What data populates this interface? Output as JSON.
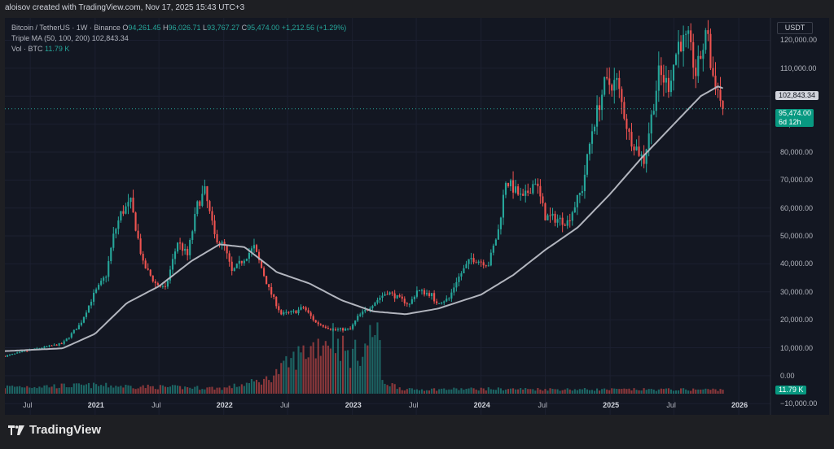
{
  "header": {
    "created_by": "aloisov created with TradingView.com, Nov 17, 2025 15:43 UTC+3"
  },
  "legend": {
    "symbol": "Bitcoin / TetherUS · 1W · Binance",
    "open_label": "O",
    "open": "94,261.45",
    "high_label": "H",
    "high": "96,026.71",
    "low_label": "L",
    "low": "93,767.27",
    "close_label": "C",
    "close": "95,474.00",
    "change": "+1,212.56 (+1.29%)",
    "ma_label": "Triple MA (50, 100, 200)",
    "ma_value": "102,843.34",
    "vol_label": "Vol · BTC",
    "vol_value": "11.79 K"
  },
  "currency": "USDT",
  "tags": {
    "ma": "102,843.34",
    "price": "95,474.00",
    "countdown": "6d 12h",
    "volume": "11.79 K"
  },
  "footer": {
    "brand": "TradingView"
  },
  "colors": {
    "up": "#26a69a",
    "down": "#ef5350",
    "ma": "#b2b5be",
    "background": "#131722"
  },
  "chart_data": {
    "type": "candlestick",
    "title": "Bitcoin / TetherUS · 1W · Binance",
    "y_ticks": [
      "120,000.00",
      "110,000.00",
      "100,000.00",
      "90,000.00",
      "80,000.00",
      "70,000.00",
      "60,000.00",
      "50,000.00",
      "40,000.00",
      "30,000.00",
      "20,000.00",
      "10,000.00",
      "0.00",
      "−10,000.00"
    ],
    "y_tick_values": [
      120000,
      110000,
      100000,
      90000,
      80000,
      70000,
      60000,
      50000,
      40000,
      30000,
      20000,
      10000,
      0,
      -10000
    ],
    "ylim": [
      -14000,
      128000
    ],
    "x_ticks": [
      "Jul",
      "2021",
      "Jul",
      "2022",
      "Jul",
      "2023",
      "Jul",
      "2024",
      "Jul",
      "2025",
      "Jul",
      "2026"
    ],
    "x_tick_dates": [
      "2020-07-01",
      "2021-01-01",
      "2021-07-01",
      "2022-01-01",
      "2022-07-01",
      "2023-01-01",
      "2023-07-01",
      "2024-01-01",
      "2024-07-01",
      "2025-01-01",
      "2025-07-01",
      "2026-01-01"
    ],
    "x_tick_bold": [
      false,
      true,
      false,
      true,
      false,
      true,
      false,
      true,
      false,
      true,
      false,
      true
    ],
    "xlim": [
      "2020-04-20",
      "2026-04-01"
    ],
    "price_anchors": [
      [
        "2020-04-20",
        7000
      ],
      [
        "2020-07-01",
        9200
      ],
      [
        "2020-10-01",
        11500
      ],
      [
        "2020-11-20",
        18500
      ],
      [
        "2020-12-28",
        29000
      ],
      [
        "2021-02-01",
        36000
      ],
      [
        "2021-02-22",
        50000
      ],
      [
        "2021-03-15",
        58000
      ],
      [
        "2021-04-12",
        62000
      ],
      [
        "2021-05-17",
        40000
      ],
      [
        "2021-06-21",
        33000
      ],
      [
        "2021-07-19",
        31000
      ],
      [
        "2021-08-23",
        48000
      ],
      [
        "2021-09-20",
        43000
      ],
      [
        "2021-10-18",
        61000
      ],
      [
        "2021-11-08",
        66000
      ],
      [
        "2021-12-06",
        50000
      ],
      [
        "2022-01-03",
        46000
      ],
      [
        "2022-01-24",
        37000
      ],
      [
        "2022-03-28",
        46000
      ],
      [
        "2022-05-09",
        31000
      ],
      [
        "2022-06-13",
        22000
      ],
      [
        "2022-07-25",
        23000
      ],
      [
        "2022-08-15",
        24500
      ],
      [
        "2022-09-19",
        19000
      ],
      [
        "2022-11-07",
        16500
      ],
      [
        "2022-12-26",
        16600
      ],
      [
        "2023-01-16",
        21000
      ],
      [
        "2023-02-13",
        24000
      ],
      [
        "2023-03-20",
        28000
      ],
      [
        "2023-04-10",
        30000
      ],
      [
        "2023-06-12",
        25500
      ],
      [
        "2023-07-03",
        30500
      ],
      [
        "2023-08-14",
        29000
      ],
      [
        "2023-08-21",
        26000
      ],
      [
        "2023-10-02",
        27500
      ],
      [
        "2023-10-23",
        34000
      ],
      [
        "2023-12-04",
        42000
      ],
      [
        "2024-01-22",
        40000
      ],
      [
        "2024-02-19",
        52000
      ],
      [
        "2024-03-11",
        70000
      ],
      [
        "2024-04-29",
        63000
      ],
      [
        "2024-06-03",
        70000
      ],
      [
        "2024-07-01",
        57000
      ],
      [
        "2024-08-05",
        56000
      ],
      [
        "2024-09-02",
        55000
      ],
      [
        "2024-10-14",
        67000
      ],
      [
        "2024-11-11",
        88000
      ],
      [
        "2024-12-16",
        104000
      ],
      [
        "2025-01-20",
        105000
      ],
      [
        "2025-02-24",
        86000
      ],
      [
        "2025-04-07",
        77000
      ],
      [
        "2025-05-19",
        108000
      ],
      [
        "2025-06-16",
        104000
      ],
      [
        "2025-07-14",
        119000
      ],
      [
        "2025-08-11",
        120000
      ],
      [
        "2025-09-01",
        108000
      ],
      [
        "2025-10-06",
        124000
      ],
      [
        "2025-10-13",
        110000
      ],
      [
        "2025-11-03",
        102000
      ],
      [
        "2025-11-17",
        95474
      ]
    ],
    "ma_anchors": [
      [
        "2020-04-20",
        8800
      ],
      [
        "2020-10-01",
        9800
      ],
      [
        "2021-01-01",
        15000
      ],
      [
        "2021-04-01",
        26000
      ],
      [
        "2021-07-01",
        32000
      ],
      [
        "2021-10-01",
        41000
      ],
      [
        "2021-12-20",
        47000
      ],
      [
        "2022-03-01",
        46000
      ],
      [
        "2022-06-01",
        37000
      ],
      [
        "2022-09-01",
        33000
      ],
      [
        "2022-12-01",
        27000
      ],
      [
        "2023-03-01",
        23000
      ],
      [
        "2023-06-01",
        22000
      ],
      [
        "2023-09-01",
        24000
      ],
      [
        "2024-01-01",
        29000
      ],
      [
        "2024-04-01",
        36000
      ],
      [
        "2024-07-01",
        45000
      ],
      [
        "2024-10-01",
        53000
      ],
      [
        "2025-01-01",
        65000
      ],
      [
        "2025-04-01",
        78000
      ],
      [
        "2025-07-01",
        90000
      ],
      [
        "2025-09-15",
        100000
      ],
      [
        "2025-11-03",
        103500
      ],
      [
        "2025-11-17",
        102843
      ]
    ],
    "volume_anchors": [
      [
        "2020-04-20",
        0.1
      ],
      [
        "2021-01-01",
        0.12
      ],
      [
        "2021-06-01",
        0.1
      ],
      [
        "2022-01-01",
        0.08
      ],
      [
        "2022-05-01",
        0.2
      ],
      [
        "2022-06-13",
        0.35
      ],
      [
        "2022-08-01",
        0.55
      ],
      [
        "2022-11-07",
        0.85
      ],
      [
        "2022-12-20",
        0.55
      ],
      [
        "2023-02-01",
        0.62
      ],
      [
        "2023-03-13",
        1.0
      ],
      [
        "2023-03-27",
        0.18
      ],
      [
        "2023-06-01",
        0.06
      ],
      [
        "2024-01-01",
        0.07
      ],
      [
        "2025-01-01",
        0.06
      ],
      [
        "2025-11-17",
        0.06
      ]
    ]
  }
}
